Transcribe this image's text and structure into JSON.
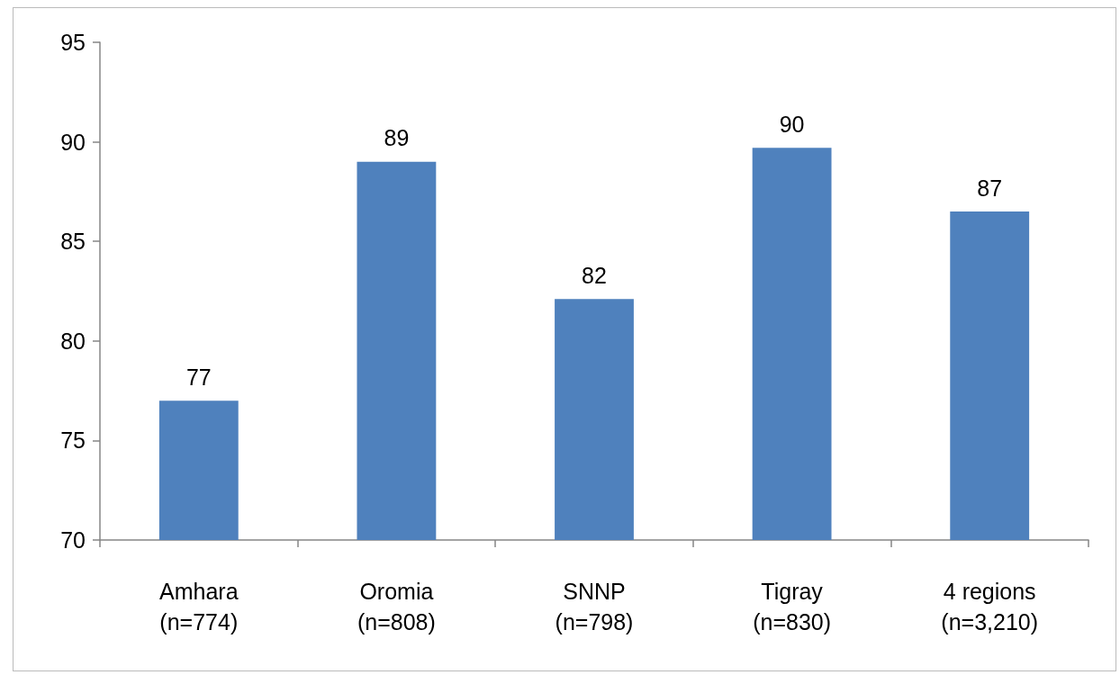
{
  "chart_data": {
    "type": "bar",
    "categories": [
      "Amhara\n(n=774)",
      "Oromia\n(n=808)",
      "SNNP\n(n=798)",
      "Tigray\n(n=830)",
      "4 regions\n(n=3,210)"
    ],
    "values": [
      77,
      89,
      82.1,
      89.7,
      86.5
    ],
    "value_labels": [
      "77",
      "89",
      "82",
      "90",
      "87"
    ],
    "color": "#4f81bd",
    "ylim": [
      70,
      95
    ],
    "yticks": [
      70,
      75,
      80,
      85,
      90,
      95
    ],
    "grid": false
  }
}
